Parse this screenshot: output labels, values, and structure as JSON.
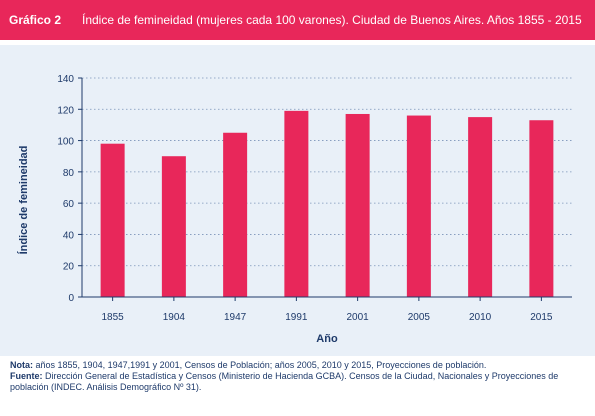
{
  "header": {
    "label": "Gráfico 2",
    "title": "Índice de femineidad (mujeres cada 100 varones). Ciudad de Buenos Aires. Años 1855 - 2015"
  },
  "colors": {
    "accent": "#e8275a",
    "panel": "#e9f0f8",
    "axis": "#1e3a6a",
    "text": "#1e3a6a"
  },
  "chart_data": {
    "type": "bar",
    "title": "",
    "xlabel": "Año",
    "ylabel": "Índice de femineidad",
    "categories": [
      "1855",
      "1904",
      "1947",
      "1991",
      "2001",
      "2005",
      "2010",
      "2015"
    ],
    "values": [
      98,
      90,
      105,
      119,
      117,
      116,
      115,
      113
    ],
    "ylim": [
      0,
      140
    ],
    "yticks": [
      0,
      20,
      40,
      60,
      80,
      100,
      120,
      140
    ],
    "grid": "horizontal-dotted",
    "legend": "none"
  },
  "notes": {
    "nota_label": "Nota:",
    "nota_text": "años 1855, 1904, 1947,1991 y 2001, Censos de Población;  años 2005, 2010 y 2015, Proyecciones de población.",
    "fuente_label": "Fuente:",
    "fuente_text": "Dirección General de Estadística y Censos (Ministerio de Hacienda GCBA). Censos de la Ciudad, Nacionales y Proyecciones de población (INDEC. Análisis Demográfico Nº 31)."
  }
}
